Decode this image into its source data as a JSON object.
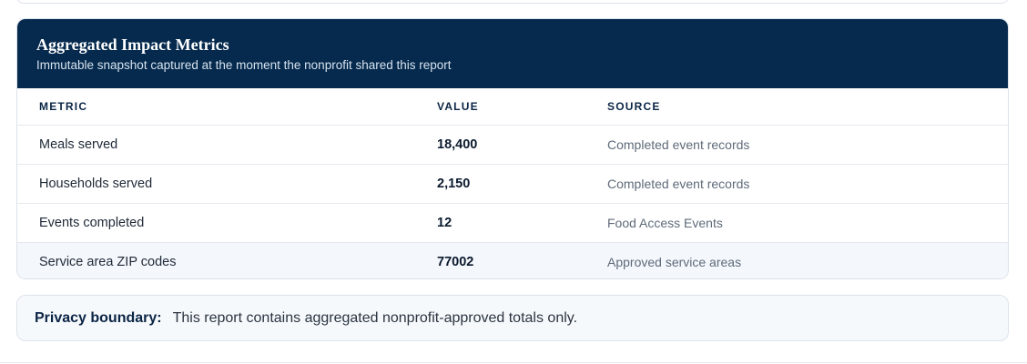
{
  "metrics": {
    "title": "Aggregated Impact Metrics",
    "subtitle": "Immutable snapshot captured at the moment the nonprofit shared this report",
    "columns": [
      "METRIC",
      "VALUE",
      "SOURCE"
    ],
    "rows": [
      {
        "metric": "Meals served",
        "value": "18,400",
        "source": "Completed event records"
      },
      {
        "metric": "Households served",
        "value": "2,150",
        "source": "Completed event records"
      },
      {
        "metric": "Events completed",
        "value": "12",
        "source": "Food Access Events"
      },
      {
        "metric": "Service area ZIP codes",
        "value": "77002",
        "source": "Approved service areas"
      }
    ]
  },
  "privacy": {
    "label": "Privacy boundary:",
    "text": "This report contains aggregated nonprofit-approved totals only."
  },
  "colors": {
    "header_bg": "#052a4e",
    "shaded_row": "#f4f7fb",
    "privacy_bg": "#f6f9fc"
  }
}
